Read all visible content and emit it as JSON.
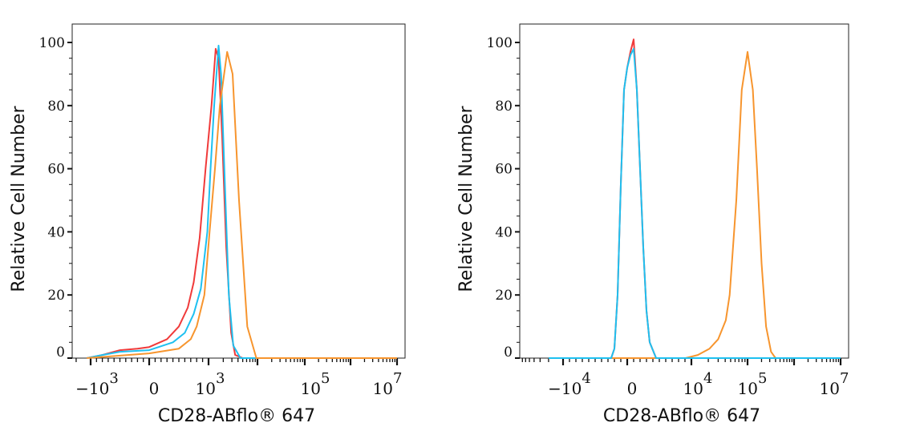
{
  "chart_data": [
    {
      "type": "line",
      "title": "",
      "xlabel": "CD28-ABflo® 647",
      "ylabel": "Relative Cell Number",
      "xscale": "biexponential",
      "ylim": [
        0,
        100
      ],
      "yticks": [
        "0",
        "20",
        "40",
        "60",
        "80",
        "100"
      ],
      "xticks": [
        {
          "value": -1000,
          "base": "−10",
          "exp": "3"
        },
        {
          "value": 0,
          "base": "0",
          "exp": ""
        },
        {
          "value": 1000,
          "base": "10",
          "exp": "3"
        },
        {
          "value": 100000,
          "base": "10",
          "exp": "5"
        },
        {
          "value": 10000000,
          "base": "10",
          "exp": "7"
        }
      ],
      "grid": false,
      "series": [
        {
          "name": "red",
          "color": "#f03a3a",
          "points": [
            [
              -1200,
              0
            ],
            [
              -800,
              1
            ],
            [
              -500,
              2.5
            ],
            [
              -200,
              3
            ],
            [
              0,
              3.5
            ],
            [
              300,
              6
            ],
            [
              500,
              10
            ],
            [
              650,
              16
            ],
            [
              750,
              24
            ],
            [
              850,
              38
            ],
            [
              950,
              60
            ],
            [
              1150,
              80
            ],
            [
              1400,
              98
            ],
            [
              1600,
              95
            ],
            [
              1900,
              70
            ],
            [
              2300,
              35
            ],
            [
              2900,
              8
            ],
            [
              3500,
              1
            ],
            [
              5000,
              0
            ],
            [
              10000000,
              0
            ]
          ]
        },
        {
          "name": "cyan",
          "color": "#1ec0f0",
          "points": [
            [
              -1200,
              0
            ],
            [
              -800,
              1
            ],
            [
              -500,
              2
            ],
            [
              0,
              2.5
            ],
            [
              400,
              5
            ],
            [
              600,
              8
            ],
            [
              750,
              14
            ],
            [
              870,
              22
            ],
            [
              980,
              40
            ],
            [
              1100,
              60
            ],
            [
              1300,
              80
            ],
            [
              1600,
              99
            ],
            [
              1800,
              90
            ],
            [
              2100,
              60
            ],
            [
              2600,
              20
            ],
            [
              3200,
              4
            ],
            [
              4500,
              0
            ],
            [
              10000000,
              0
            ]
          ]
        },
        {
          "name": "orange",
          "color": "#f7952e",
          "points": [
            [
              -1200,
              0
            ],
            [
              -700,
              0.5
            ],
            [
              0,
              1.5
            ],
            [
              500,
              3
            ],
            [
              700,
              6
            ],
            [
              800,
              10
            ],
            [
              930,
              20
            ],
            [
              1050,
              40
            ],
            [
              1350,
              60
            ],
            [
              1700,
              80
            ],
            [
              2400,
              97
            ],
            [
              3100,
              90
            ],
            [
              4200,
              50
            ],
            [
              6200,
              10
            ],
            [
              9500,
              0
            ],
            [
              10000000,
              0
            ]
          ]
        }
      ]
    },
    {
      "type": "line",
      "title": "",
      "xlabel": "CD28-ABflo® 647",
      "ylabel": "Relative Cell Number",
      "xscale": "biexponential",
      "ylim": [
        0,
        100
      ],
      "yticks": [
        "0",
        "20",
        "40",
        "60",
        "80",
        "100"
      ],
      "xticks": [
        {
          "value": -10000,
          "base": "−10",
          "exp": "4"
        },
        {
          "value": 0,
          "base": "0",
          "exp": ""
        },
        {
          "value": 10000,
          "base": "10",
          "exp": "4"
        },
        {
          "value": 100000,
          "base": "10",
          "exp": "5"
        },
        {
          "value": 10000000,
          "base": "10",
          "exp": "7"
        }
      ],
      "grid": false,
      "series": [
        {
          "name": "orange",
          "color": "#f7952e",
          "points": [
            [
              -20000,
              0
            ],
            [
              9100,
              0
            ],
            [
              13000,
              1
            ],
            [
              21000,
              3
            ],
            [
              30000,
              6
            ],
            [
              41000,
              12
            ],
            [
              48000,
              20
            ],
            [
              63000,
              50
            ],
            [
              79000,
              85
            ],
            [
              100000,
              97
            ],
            [
              130000,
              85
            ],
            [
              160000,
              60
            ],
            [
              200000,
              30
            ],
            [
              250000,
              10
            ],
            [
              320000,
              2
            ],
            [
              400000,
              0
            ],
            [
              10000000,
              0
            ]
          ]
        },
        {
          "name": "red",
          "color": "#f03a3a",
          "points": [
            [
              -20000,
              0
            ],
            [
              -2500,
              0
            ],
            [
              -2000,
              3
            ],
            [
              -1500,
              20
            ],
            [
              -1000,
              55
            ],
            [
              -500,
              85
            ],
            [
              0,
              92
            ],
            [
              500,
              97
            ],
            [
              1000,
              101
            ],
            [
              1500,
              85
            ],
            [
              2000,
              60
            ],
            [
              2500,
              35
            ],
            [
              3000,
              15
            ],
            [
              3500,
              5
            ],
            [
              4500,
              0
            ],
            [
              10000000,
              0
            ]
          ]
        },
        {
          "name": "cyan",
          "color": "#1ec0f0",
          "points": [
            [
              -20000,
              0
            ],
            [
              -2500,
              0
            ],
            [
              -2000,
              3
            ],
            [
              -1500,
              20
            ],
            [
              -1000,
              55
            ],
            [
              -500,
              85
            ],
            [
              0,
              92
            ],
            [
              500,
              96
            ],
            [
              1000,
              98
            ],
            [
              1500,
              85
            ],
            [
              2000,
              60
            ],
            [
              2500,
              35
            ],
            [
              3000,
              15
            ],
            [
              3500,
              5
            ],
            [
              4500,
              0
            ],
            [
              10000000,
              0
            ]
          ]
        }
      ]
    }
  ]
}
